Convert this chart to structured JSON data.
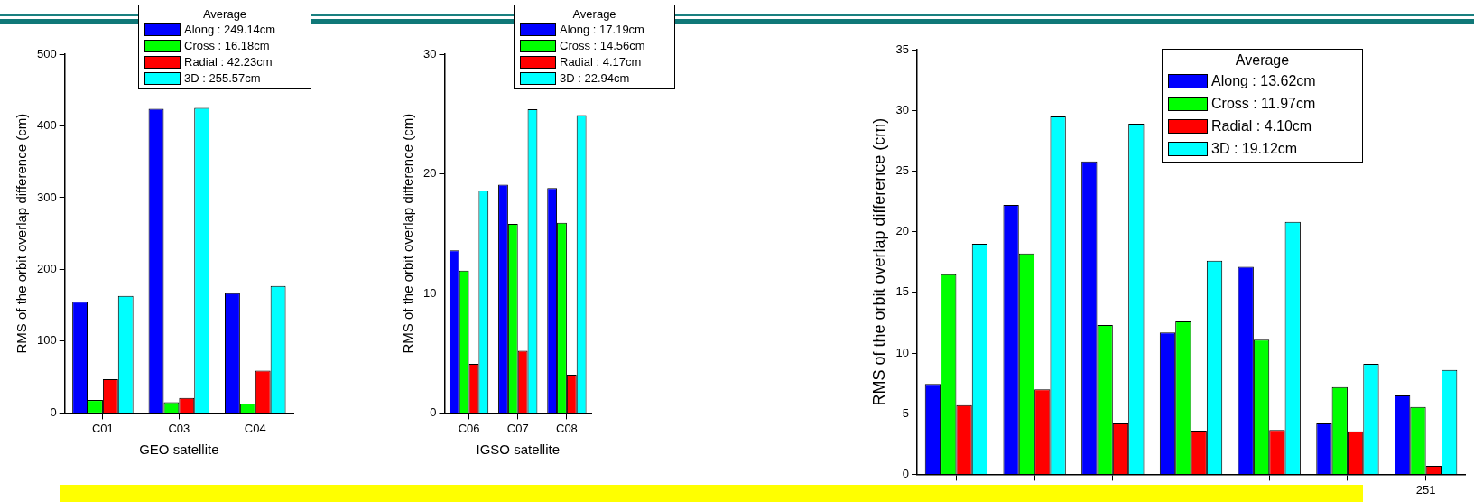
{
  "chart_data": [
    {
      "type": "bar",
      "xlabel": "GEO satellite",
      "ylabel": "RMS of the orbit overlap difference (cm)",
      "legend_title": "Average",
      "legend": "top right",
      "categories": [
        "C01",
        "C03",
        "C04"
      ],
      "ylim": [
        0,
        500
      ],
      "yticks": [
        0,
        100,
        200,
        300,
        400,
        500
      ],
      "series": [
        {
          "name": "Along : 249.14cm",
          "color": "#0000ff",
          "values": [
            155,
            424,
            167
          ]
        },
        {
          "name": "Cross : 16.18cm",
          "color": "#00ff00",
          "values": [
            18,
            15,
            13
          ]
        },
        {
          "name": "Radial : 42.23cm",
          "color": "#ff0000",
          "values": [
            47,
            21,
            59
          ]
        },
        {
          "name": "3D : 255.57cm",
          "color": "#00ffff",
          "values": [
            163,
            425,
            177
          ]
        }
      ]
    },
    {
      "type": "bar",
      "xlabel": "IGSO satellite",
      "ylabel": "RMS of the orbit overlap difference (cm)",
      "legend_title": "Average",
      "legend": "top right",
      "categories": [
        "C06",
        "C07",
        "C08"
      ],
      "ylim": [
        0,
        30
      ],
      "yticks": [
        0,
        10,
        20,
        30
      ],
      "series": [
        {
          "name": "Along : 17.19cm",
          "color": "#0000ff",
          "values": [
            13.6,
            19.1,
            18.8
          ]
        },
        {
          "name": "Cross : 14.56cm",
          "color": "#00ff00",
          "values": [
            11.9,
            15.8,
            15.9
          ]
        },
        {
          "name": "Radial : 4.17cm",
          "color": "#ff0000",
          "values": [
            4.1,
            5.2,
            3.2
          ]
        },
        {
          "name": "3D : 22.94cm",
          "color": "#00ffff",
          "values": [
            18.6,
            25.4,
            24.9
          ]
        }
      ]
    },
    {
      "type": "bar",
      "ylabel": "RMS of the orbit overlap difference (cm)",
      "legend_title": "Average",
      "legend": "top right",
      "categories": [
        null,
        null,
        null,
        null,
        null,
        null,
        "251"
      ],
      "ylim": [
        0,
        35
      ],
      "yticks": [
        0,
        5,
        10,
        15,
        20,
        25,
        30,
        35
      ],
      "series": [
        {
          "name": "Along : 13.62cm",
          "color": "#0000ff",
          "values": [
            7.45,
            22.2,
            25.8,
            11.7,
            17.1,
            4.2,
            6.5
          ]
        },
        {
          "name": "Cross : 11.97cm",
          "color": "#00ff00",
          "values": [
            16.5,
            18.2,
            12.3,
            12.6,
            11.1,
            7.2,
            5.55
          ]
        },
        {
          "name": "Radial : 4.10cm",
          "color": "#ff0000",
          "values": [
            5.7,
            7.0,
            4.2,
            3.6,
            3.65,
            3.55,
            0.7
          ]
        },
        {
          "name": "3D : 19.12cm",
          "color": "#00ffff",
          "values": [
            19.0,
            29.5,
            28.9,
            17.6,
            20.8,
            9.1,
            8.6
          ]
        }
      ]
    }
  ]
}
